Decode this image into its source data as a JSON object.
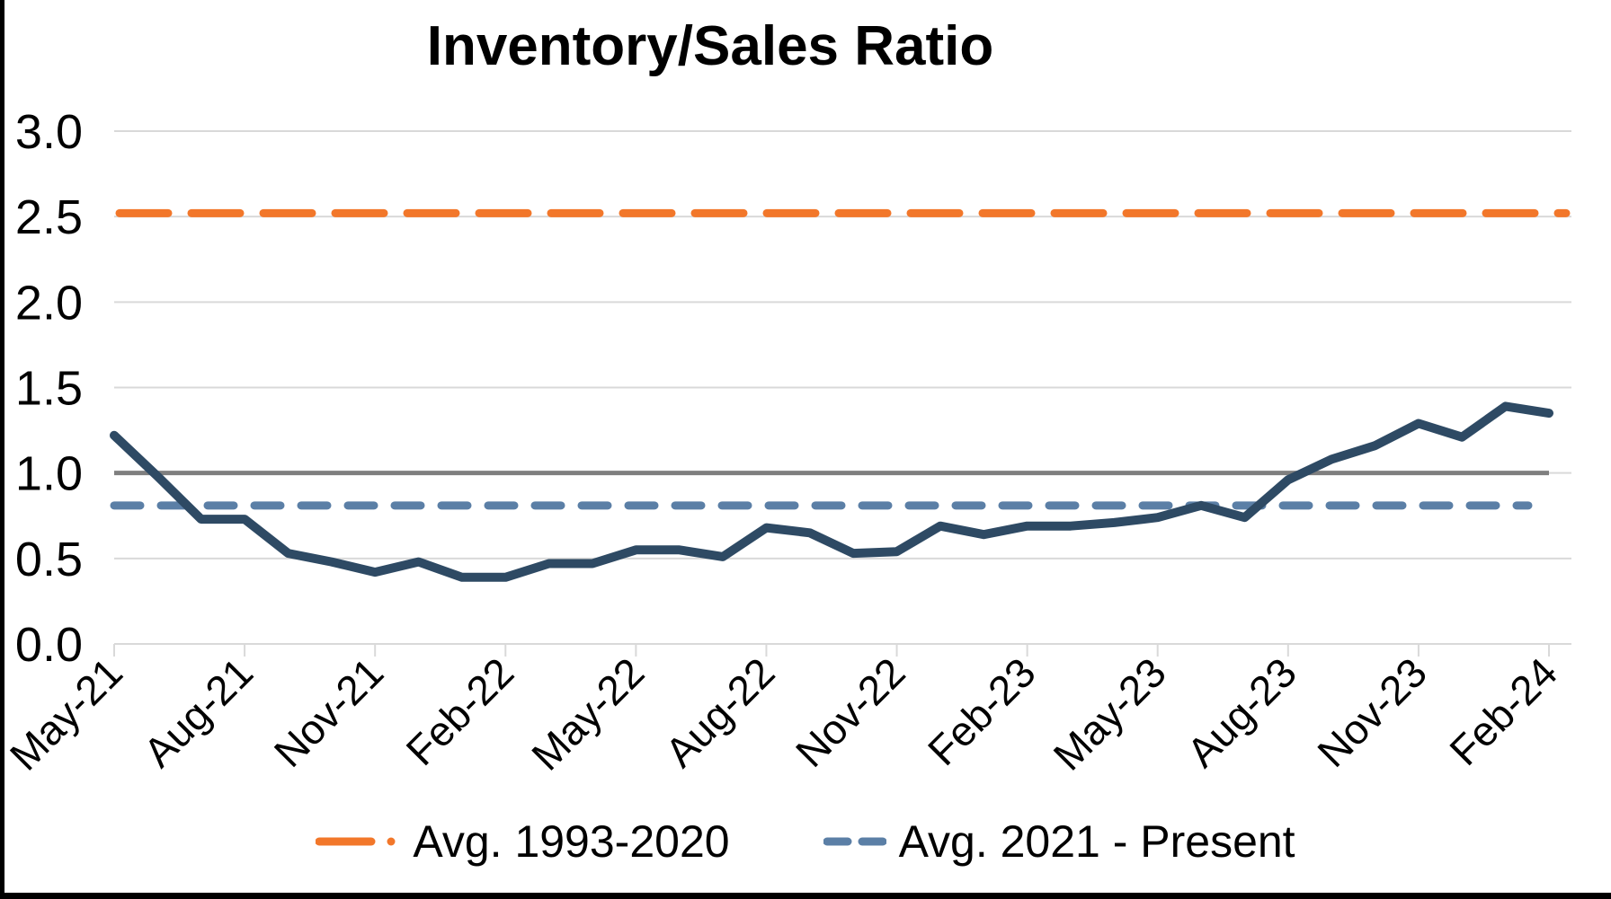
{
  "title": "Inventory/Sales Ratio",
  "chart_data": {
    "type": "line",
    "x": [
      "May-21",
      "Jun-21",
      "Jul-21",
      "Aug-21",
      "Sep-21",
      "Oct-21",
      "Nov-21",
      "Dec-21",
      "Jan-22",
      "Feb-22",
      "Mar-22",
      "Apr-22",
      "May-22",
      "Jun-22",
      "Jul-22",
      "Aug-22",
      "Sep-22",
      "Oct-22",
      "Nov-22",
      "Dec-22",
      "Jan-23",
      "Feb-23",
      "Mar-23",
      "Apr-23",
      "May-23",
      "Jun-23",
      "Jul-23",
      "Aug-23",
      "Sep-23",
      "Oct-23",
      "Nov-23",
      "Dec-23",
      "Jan-24",
      "Feb-24"
    ],
    "x_tick_labels": [
      "May-21",
      "Aug-21",
      "Nov-21",
      "Feb-22",
      "May-22",
      "Aug-22",
      "Nov-22",
      "Feb-23",
      "May-23",
      "Aug-23",
      "Nov-23",
      "Feb-24"
    ],
    "series": [
      {
        "name": "Inventory/Sales Ratio",
        "type": "monthly-line",
        "color": "#2E4A64",
        "style": "solid",
        "values": [
          1.22,
          0.98,
          0.73,
          0.73,
          0.53,
          0.48,
          0.42,
          0.48,
          0.39,
          0.39,
          0.47,
          0.47,
          0.55,
          0.55,
          0.51,
          0.68,
          0.65,
          0.53,
          0.54,
          0.69,
          0.64,
          0.69,
          0.69,
          0.71,
          0.74,
          0.81,
          0.74,
          0.96,
          1.08,
          1.16,
          1.29,
          1.21,
          1.39,
          1.35
        ]
      },
      {
        "name": "Avg. 1993-2020",
        "type": "constant-line",
        "color": "#F2772A",
        "style": "dashed",
        "value": 2.52
      },
      {
        "name": "Avg. 2021 - Present",
        "type": "constant-line",
        "color": "#5B7FA6",
        "style": "dashed",
        "value": 0.81
      }
    ],
    "reference_line": {
      "value": 1.0,
      "color": "#7F7F7F"
    },
    "ylim": [
      0.0,
      3.0
    ],
    "yticks": [
      "3.0",
      "2.5",
      "2.0",
      "1.5",
      "1.0",
      "0.5",
      "0.0"
    ],
    "grid": true,
    "gridline_color": "#D9D9D9",
    "legend_position": "bottom"
  },
  "legend": {
    "items": [
      {
        "label": "Avg. 1993-2020",
        "color": "#F2772A"
      },
      {
        "label": "Avg. 2021 - Present",
        "color": "#5B7FA6"
      }
    ]
  }
}
